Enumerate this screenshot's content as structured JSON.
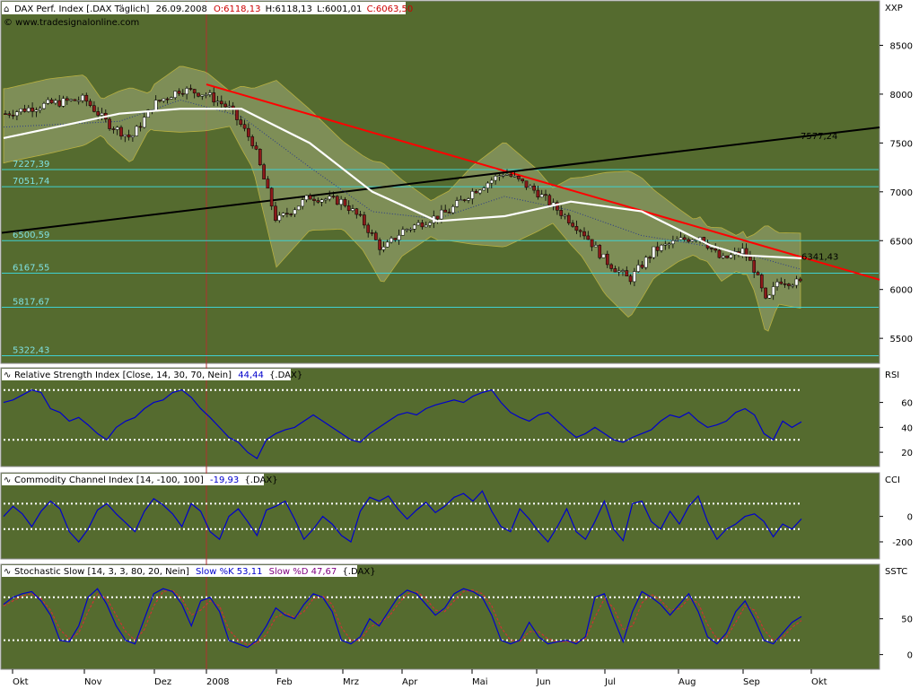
{
  "header": {
    "symbol": "DAX Perf. Index [.DAX Täglich]",
    "date": "26.09.2008",
    "open": "O:6118,13",
    "high": "H:6118,13",
    "low": "L:6001,01",
    "close": "C:6063,50",
    "watermark": "© www.tradesignalonline.com"
  },
  "colors": {
    "panel_bg": "#556b2f",
    "candle_up": "#ffffff",
    "candle_down": "#8b1a1a",
    "ma": "#ffffff",
    "bollinger_fill": "#8c9a66",
    "bollinger_line": "#b8b040",
    "trend_red": "#ff0000",
    "trend_black": "#000000",
    "level_line": "#40d0d0",
    "indicator": "#0000cc",
    "stoch_d": "#cc3333",
    "dotted": "#ffffff",
    "open_value": "#cc0000"
  },
  "x_axis": {
    "labels": [
      "Okt",
      "Nov",
      "Dez",
      "2008",
      "Feb",
      "Mrz",
      "Apr",
      "Mai",
      "Jun",
      "Jul",
      "Aug",
      "Sep",
      "Okt"
    ]
  },
  "chart_data": [
    {
      "type": "candlestick",
      "title": "DAX Perf. Index [.DAX Täglich]",
      "axis_label": "XXP",
      "yticks": [
        5500,
        6000,
        6500,
        7000,
        7500,
        8000,
        8500
      ],
      "ylim": [
        5290,
        8780
      ],
      "x": [
        "Okt",
        "Nov",
        "Dez",
        "2008",
        "Feb",
        "Mrz",
        "Apr",
        "Mai",
        "Jun",
        "Jul",
        "Aug",
        "Sep",
        "Okt"
      ],
      "close_path": [
        [
          "Okt",
          7800
        ],
        [
          "Okt",
          7900
        ],
        [
          "Nov",
          7950
        ],
        [
          "Nov",
          7700
        ],
        [
          "Nov",
          7550
        ],
        [
          "Dez",
          7900
        ],
        [
          "Dez",
          8050
        ],
        [
          "2008",
          8000
        ],
        [
          "2008",
          7850
        ],
        [
          "2008",
          7500
        ],
        [
          "Feb",
          6700
        ],
        [
          "Feb",
          6950
        ],
        [
          "Mrz",
          6900
        ],
        [
          "Mrz",
          6700
        ],
        [
          "Mrz",
          6400
        ],
        [
          "Apr",
          6600
        ],
        [
          "Apr",
          6700
        ],
        [
          "Apr",
          6800
        ],
        [
          "Mai",
          7000
        ],
        [
          "Mai",
          7200
        ],
        [
          "Jun",
          7000
        ],
        [
          "Jun",
          6800
        ],
        [
          "Jun",
          6600
        ],
        [
          "Jul",
          6300
        ],
        [
          "Jul",
          6100
        ],
        [
          "Jul",
          6400
        ],
        [
          "Aug",
          6500
        ],
        [
          "Aug",
          6550
        ],
        [
          "Aug",
          6300
        ],
        [
          "Sep",
          6400
        ],
        [
          "Sep",
          6200
        ],
        [
          "Sep",
          5850
        ],
        [
          "Sep",
          6100
        ],
        [
          "Sep",
          6063.5
        ]
      ],
      "moving_average_path": [
        [
          "Okt",
          7550
        ],
        [
          "Nov",
          7800
        ],
        [
          "Dez",
          7850
        ],
        [
          "2008",
          7850
        ],
        [
          "Feb",
          7500
        ],
        [
          "Mrz",
          7000
        ],
        [
          "Apr",
          6700
        ],
        [
          "Mai",
          6750
        ],
        [
          "Jun",
          6900
        ],
        [
          "Jul",
          6800
        ],
        [
          "Aug",
          6450
        ],
        [
          "Sep",
          6350
        ],
        [
          "Sep",
          6320
        ]
      ],
      "levels": [
        "7227,39",
        "7051,74",
        "6500,59",
        "6167,55",
        "5817,67",
        "5322,43"
      ],
      "level_values": [
        7227.39,
        7051.74,
        6500.59,
        6167.55,
        5817.67,
        5322.43
      ],
      "annotations": [
        {
          "text": "7577,24",
          "value": 7577.24
        },
        {
          "text": "6341,43",
          "value": 6341.43
        }
      ],
      "trendlines": [
        {
          "name": "red",
          "from": [
            "2008",
            8100
          ],
          "to": [
            "Okt",
            6100
          ]
        },
        {
          "name": "black",
          "from": [
            "Okt",
            6580
          ],
          "to": [
            "Okt",
            7660
          ]
        }
      ]
    },
    {
      "type": "line",
      "title": "Relative Strength Index [Close, 14, 30, 70, Nein]",
      "value_label": "44,44",
      "source_label": "{.DAX}",
      "axis_label": "RSI",
      "yticks": [
        20,
        40,
        60
      ],
      "ylim": [
        10,
        77
      ],
      "overbought": 70,
      "oversold": 30,
      "values": [
        60,
        62,
        66,
        70,
        68,
        55,
        52,
        45,
        48,
        42,
        35,
        30,
        40,
        45,
        48,
        55,
        60,
        62,
        68,
        70,
        64,
        55,
        48,
        40,
        32,
        28,
        20,
        15,
        30,
        35,
        38,
        40,
        45,
        50,
        45,
        40,
        35,
        30,
        28,
        35,
        40,
        45,
        50,
        52,
        50,
        55,
        58,
        60,
        62,
        60,
        65,
        68,
        70,
        60,
        52,
        48,
        45,
        50,
        52,
        45,
        38,
        32,
        35,
        40,
        35,
        30,
        28,
        32,
        35,
        38,
        45,
        50,
        48,
        52,
        45,
        40,
        42,
        45,
        52,
        55,
        50,
        35,
        30,
        45,
        40,
        44.44
      ]
    },
    {
      "type": "line",
      "title": "Commodity Channel Index [14, -100, 100]",
      "value_label": "-19,93",
      "source_label": "{.DAX}",
      "axis_label": "CCI",
      "yticks": [
        0,
        -200
      ],
      "ylim": [
        -320,
        230
      ],
      "upper": 100,
      "lower": -100,
      "values": [
        0,
        80,
        20,
        -80,
        40,
        120,
        60,
        -120,
        -200,
        -100,
        50,
        100,
        20,
        -50,
        -120,
        40,
        140,
        90,
        20,
        -80,
        100,
        40,
        -120,
        -180,
        0,
        60,
        -40,
        -150,
        50,
        80,
        120,
        -20,
        -180,
        -100,
        0,
        -60,
        -150,
        -200,
        40,
        150,
        120,
        160,
        60,
        -20,
        50,
        110,
        30,
        80,
        150,
        180,
        120,
        200,
        40,
        -80,
        -120,
        60,
        -20,
        -120,
        -200,
        -80,
        60,
        -120,
        -180,
        -40,
        120,
        -100,
        -190,
        100,
        120,
        -40,
        -100,
        40,
        -60,
        80,
        160,
        -40,
        -180,
        -100,
        -60,
        0,
        20,
        -40,
        -160,
        -60,
        -100,
        -19.93
      ]
    },
    {
      "type": "line",
      "title": "Stochastic Slow [14, 3, 3, 80, 20, Nein]",
      "k_label": "Slow %K 53,11",
      "d_label": "Slow %D 47,67",
      "source_label": "{.DAX}",
      "axis_label": "SSTC",
      "yticks": [
        0,
        50
      ],
      "ylim": [
        -18,
        106
      ],
      "upper": 80,
      "lower": 20,
      "series": [
        {
          "name": "Slow %K",
          "values": [
            70,
            80,
            85,
            88,
            75,
            55,
            20,
            18,
            40,
            80,
            92,
            70,
            40,
            20,
            15,
            50,
            85,
            92,
            88,
            70,
            40,
            75,
            80,
            60,
            20,
            15,
            10,
            20,
            40,
            65,
            55,
            50,
            70,
            85,
            80,
            60,
            20,
            15,
            25,
            50,
            40,
            60,
            80,
            90,
            85,
            70,
            55,
            65,
            85,
            92,
            88,
            80,
            55,
            20,
            15,
            20,
            45,
            25,
            15,
            18,
            20,
            15,
            25,
            80,
            85,
            50,
            18,
            60,
            88,
            80,
            70,
            55,
            70,
            85,
            60,
            25,
            15,
            30,
            60,
            75,
            50,
            20,
            15,
            30,
            45,
            53.11
          ]
        },
        {
          "name": "Slow %D",
          "values": [
            68,
            75,
            82,
            85,
            78,
            62,
            35,
            22,
            30,
            60,
            85,
            78,
            55,
            32,
            20,
            35,
            68,
            88,
            90,
            78,
            55,
            62,
            75,
            68,
            35,
            20,
            14,
            16,
            28,
            52,
            58,
            52,
            60,
            78,
            82,
            70,
            38,
            20,
            20,
            38,
            45,
            52,
            70,
            85,
            88,
            78,
            62,
            60,
            75,
            88,
            90,
            85,
            68,
            38,
            20,
            18,
            32,
            32,
            22,
            18,
            18,
            18,
            22,
            52,
            78,
            65,
            35,
            40,
            72,
            84,
            76,
            62,
            64,
            78,
            72,
            42,
            22,
            24,
            45,
            68,
            62,
            35,
            20,
            24,
            38,
            47.67
          ]
        }
      ]
    }
  ]
}
